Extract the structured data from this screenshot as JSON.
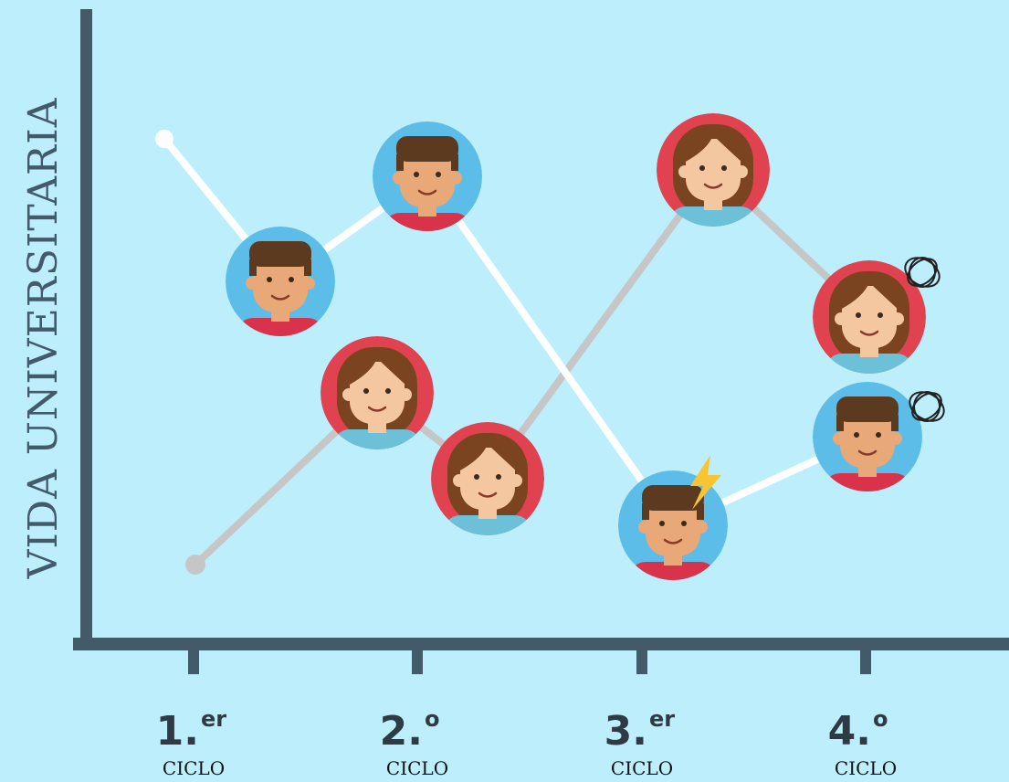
{
  "axis_title": "VIDA UNIVERSITARIA",
  "cycles": [
    {
      "number": "1.",
      "suffix": "er",
      "label": "CICLO"
    },
    {
      "number": "2.",
      "suffix": "o",
      "label": "CICLO"
    },
    {
      "number": "3.",
      "suffix": "er",
      "label": "CICLO"
    },
    {
      "number": "4.",
      "suffix": "o",
      "label": "CICLO"
    }
  ]
}
